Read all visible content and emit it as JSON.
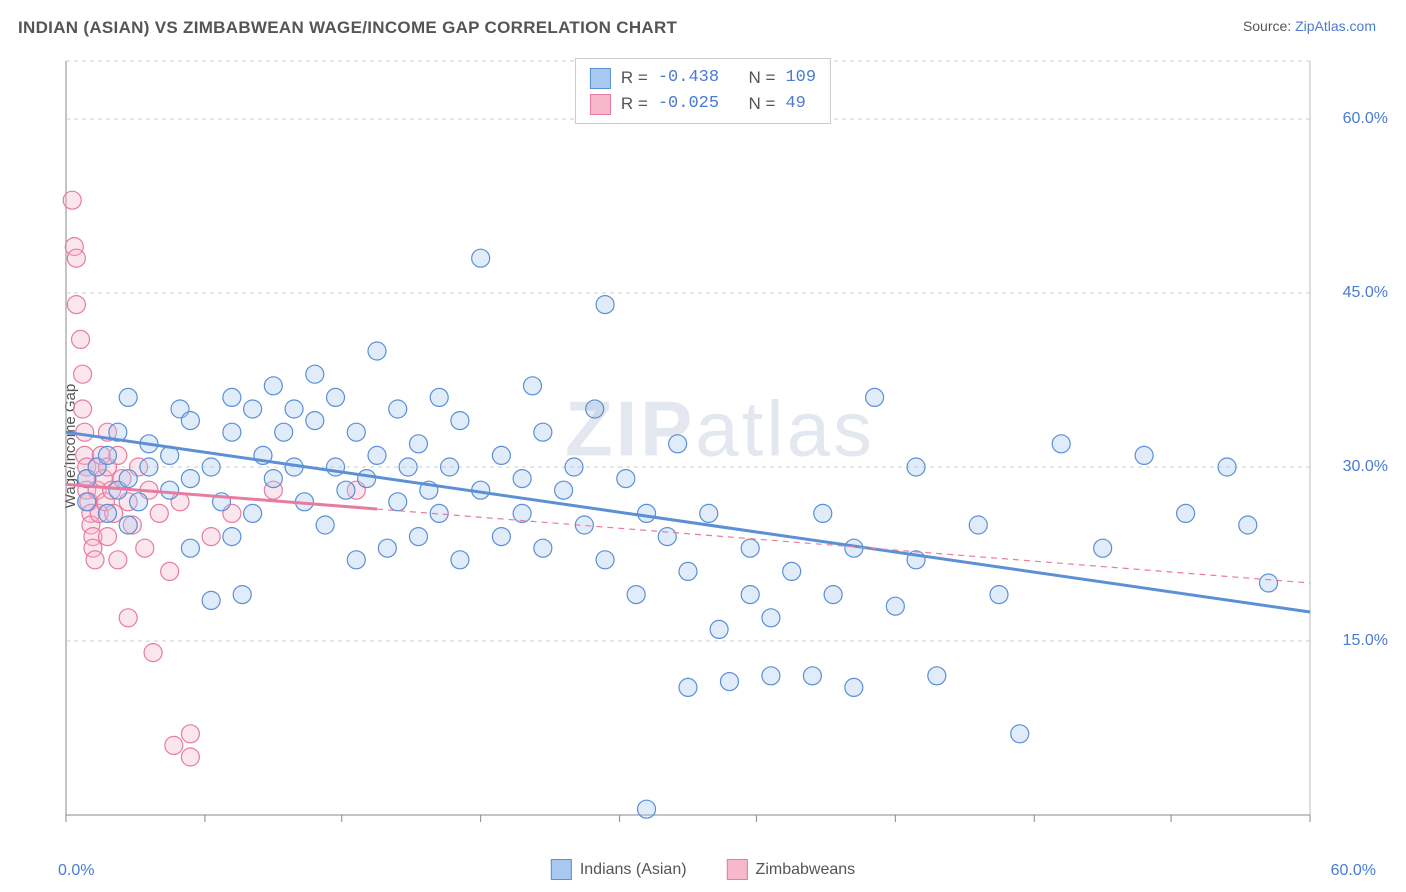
{
  "title": "INDIAN (ASIAN) VS ZIMBABWEAN WAGE/INCOME GAP CORRELATION CHART",
  "source_label": "Source: ",
  "source_name": "ZipAtlas.com",
  "ylabel": "Wage/Income Gap",
  "watermark": "ZIPatlas",
  "chart": {
    "type": "scatter-with-regression",
    "xlim": [
      0,
      60
    ],
    "ylim": [
      0,
      65
    ],
    "x_min_label": "0.0%",
    "x_max_label": "60.0%",
    "y_ticks": [
      15,
      30,
      45,
      60
    ],
    "y_tick_labels": [
      "15.0%",
      "30.0%",
      "45.0%",
      "60.0%"
    ],
    "x_minor_ticks": [
      0,
      6.7,
      13.3,
      20,
      26.7,
      33.3,
      40,
      46.7,
      53.3,
      60
    ],
    "grid_color": "#cccccc",
    "grid_dash": "4,4",
    "background_color": "#ffffff",
    "axis_color": "#888888",
    "plot_border_color": "#bbbbbb",
    "marker_radius": 9,
    "marker_stroke_width": 1.2,
    "marker_fill_opacity": 0.35,
    "series": [
      {
        "name": "Indians (Asian)",
        "color_fill": "#a8c8f0",
        "color_stroke": "#5b8fd6",
        "regression": {
          "x1": 0,
          "y1": 33,
          "x2": 60,
          "y2": 17.5,
          "solid_until_x": 60
        },
        "R": "-0.438",
        "N": "109",
        "points": [
          [
            1,
            29
          ],
          [
            1,
            27
          ],
          [
            1.5,
            30
          ],
          [
            2,
            26
          ],
          [
            2,
            31
          ],
          [
            2.5,
            28
          ],
          [
            2.5,
            33
          ],
          [
            3,
            29
          ],
          [
            3,
            25
          ],
          [
            3.5,
            27
          ],
          [
            3,
            36
          ],
          [
            4,
            30
          ],
          [
            4,
            32
          ],
          [
            5,
            28
          ],
          [
            5,
            31
          ],
          [
            5.5,
            35
          ],
          [
            6,
            29
          ],
          [
            6,
            23
          ],
          [
            6,
            34
          ],
          [
            7,
            18.5
          ],
          [
            7,
            30
          ],
          [
            7.5,
            27
          ],
          [
            8,
            24
          ],
          [
            8,
            33
          ],
          [
            8.5,
            19
          ],
          [
            8,
            36
          ],
          [
            9,
            35
          ],
          [
            9,
            26
          ],
          [
            9.5,
            31
          ],
          [
            10,
            29
          ],
          [
            10,
            37
          ],
          [
            10.5,
            33
          ],
          [
            11,
            30
          ],
          [
            11,
            35
          ],
          [
            11.5,
            27
          ],
          [
            12,
            34
          ],
          [
            12,
            38
          ],
          [
            12.5,
            25
          ],
          [
            13,
            30
          ],
          [
            13,
            36
          ],
          [
            13.5,
            28
          ],
          [
            14,
            22
          ],
          [
            14,
            33
          ],
          [
            14.5,
            29
          ],
          [
            15,
            31
          ],
          [
            15,
            40
          ],
          [
            15.5,
            23
          ],
          [
            16,
            27
          ],
          [
            16,
            35
          ],
          [
            16.5,
            30
          ],
          [
            17,
            24
          ],
          [
            17,
            32
          ],
          [
            17.5,
            28
          ],
          [
            18,
            36
          ],
          [
            18,
            26
          ],
          [
            18.5,
            30
          ],
          [
            19,
            22
          ],
          [
            19,
            34
          ],
          [
            20,
            48
          ],
          [
            20,
            28
          ],
          [
            21,
            24
          ],
          [
            21,
            31
          ],
          [
            22,
            29
          ],
          [
            22,
            26
          ],
          [
            22.5,
            37
          ],
          [
            23,
            23
          ],
          [
            23,
            33
          ],
          [
            24,
            28
          ],
          [
            24.5,
            30
          ],
          [
            25,
            25
          ],
          [
            25.5,
            35
          ],
          [
            26,
            44
          ],
          [
            26,
            22
          ],
          [
            27,
            29
          ],
          [
            27.5,
            19
          ],
          [
            28,
            0.5
          ],
          [
            28,
            26
          ],
          [
            29,
            24
          ],
          [
            29.5,
            32
          ],
          [
            30,
            21
          ],
          [
            30,
            11
          ],
          [
            31,
            26
          ],
          [
            31.5,
            16
          ],
          [
            32,
            11.5
          ],
          [
            33,
            19
          ],
          [
            33,
            23
          ],
          [
            34,
            12
          ],
          [
            34,
            17
          ],
          [
            35,
            21
          ],
          [
            36,
            12
          ],
          [
            36.5,
            26
          ],
          [
            37,
            19
          ],
          [
            38,
            23
          ],
          [
            38,
            11
          ],
          [
            39,
            36
          ],
          [
            40,
            18
          ],
          [
            41,
            22
          ],
          [
            41,
            30
          ],
          [
            42,
            12
          ],
          [
            44,
            25
          ],
          [
            45,
            19
          ],
          [
            46,
            7
          ],
          [
            48,
            32
          ],
          [
            50,
            23
          ],
          [
            52,
            31
          ],
          [
            54,
            26
          ],
          [
            56,
            30
          ],
          [
            57,
            25
          ],
          [
            58,
            20
          ]
        ]
      },
      {
        "name": "Zimbabweans",
        "color_fill": "#f6b8ca",
        "color_stroke": "#e87ba0",
        "regression": {
          "x1": 0,
          "y1": 28.5,
          "x2": 60,
          "y2": 20,
          "solid_until_x": 15
        },
        "R": "-0.025",
        "N": "49",
        "points": [
          [
            0.3,
            53
          ],
          [
            0.4,
            49
          ],
          [
            0.5,
            48
          ],
          [
            0.5,
            44
          ],
          [
            0.7,
            41
          ],
          [
            0.8,
            38
          ],
          [
            0.8,
            35
          ],
          [
            0.9,
            33
          ],
          [
            0.9,
            31
          ],
          [
            1,
            30
          ],
          [
            1,
            29
          ],
          [
            1,
            28
          ],
          [
            1.1,
            27
          ],
          [
            1.2,
            26
          ],
          [
            1.2,
            25
          ],
          [
            1.3,
            24
          ],
          [
            1.3,
            23
          ],
          [
            1.4,
            22
          ],
          [
            1.5,
            30
          ],
          [
            1.5,
            28
          ],
          [
            1.6,
            26
          ],
          [
            1.7,
            31
          ],
          [
            1.8,
            29
          ],
          [
            1.9,
            27
          ],
          [
            2,
            33
          ],
          [
            2,
            30
          ],
          [
            2,
            24
          ],
          [
            2.2,
            28
          ],
          [
            2.3,
            26
          ],
          [
            2.5,
            31
          ],
          [
            2.5,
            22
          ],
          [
            2.7,
            29
          ],
          [
            3,
            27
          ],
          [
            3,
            17
          ],
          [
            3.2,
            25
          ],
          [
            3.5,
            30
          ],
          [
            3.8,
            23
          ],
          [
            4,
            28
          ],
          [
            4.2,
            14
          ],
          [
            4.5,
            26
          ],
          [
            5,
            21
          ],
          [
            5.2,
            6
          ],
          [
            5.5,
            27
          ],
          [
            6,
            5
          ],
          [
            6,
            7
          ],
          [
            7,
            24
          ],
          [
            8,
            26
          ],
          [
            10,
            28
          ],
          [
            14,
            28
          ]
        ]
      }
    ]
  },
  "stat_legend": {
    "rows": [
      {
        "swatch_fill": "#a8c8f0",
        "swatch_stroke": "#5b8fd6",
        "r_label": "R =",
        "r_val": "-0.438",
        "n_label": "N =",
        "n_val": "109"
      },
      {
        "swatch_fill": "#f6b8ca",
        "swatch_stroke": "#e87ba0",
        "r_label": "R =",
        "r_val": "-0.025",
        "n_label": "N =",
        "n_val": " 49"
      }
    ]
  },
  "bottom_legend": {
    "items": [
      {
        "swatch_fill": "#a8c8f0",
        "swatch_stroke": "#5b8fd6",
        "label": "Indians (Asian)"
      },
      {
        "swatch_fill": "#f6b8ca",
        "swatch_stroke": "#e87ba0",
        "label": "Zimbabweans"
      }
    ]
  }
}
